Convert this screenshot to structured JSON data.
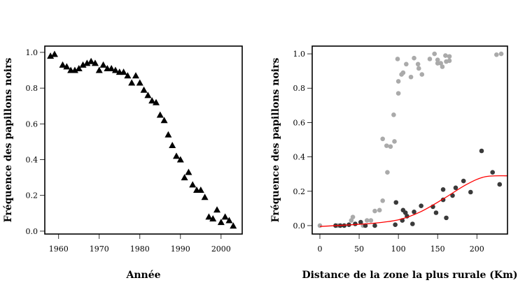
{
  "chart_data": [
    {
      "type": "scatter",
      "xlabel": "Année",
      "ylabel": "Fréquence des papillons noirs",
      "xlim": [
        1956.6,
        2005.2
      ],
      "ylim": [
        -0.016,
        1.035
      ],
      "xticks": [
        1960,
        1970,
        1980,
        1990,
        2000
      ],
      "yticks": [
        "0.0",
        "0.2",
        "0.4",
        "0.6",
        "0.8",
        "1.0"
      ],
      "marker": "triangle",
      "marker_color": "#000000",
      "grid": false,
      "points": [
        [
          1958,
          0.98
        ],
        [
          1959,
          0.99
        ],
        [
          1961,
          0.93
        ],
        [
          1962,
          0.92
        ],
        [
          1963,
          0.9
        ],
        [
          1964,
          0.9
        ],
        [
          1965,
          0.91
        ],
        [
          1966,
          0.93
        ],
        [
          1967,
          0.94
        ],
        [
          1968,
          0.95
        ],
        [
          1969,
          0.94
        ],
        [
          1970,
          0.9
        ],
        [
          1971,
          0.93
        ],
        [
          1972,
          0.91
        ],
        [
          1973,
          0.91
        ],
        [
          1974,
          0.9
        ],
        [
          1975,
          0.89
        ],
        [
          1976,
          0.89
        ],
        [
          1977,
          0.87
        ],
        [
          1978,
          0.83
        ],
        [
          1979,
          0.87
        ],
        [
          1980,
          0.83
        ],
        [
          1981,
          0.79
        ],
        [
          1982,
          0.76
        ],
        [
          1983,
          0.73
        ],
        [
          1984,
          0.72
        ],
        [
          1985,
          0.65
        ],
        [
          1986,
          0.62
        ],
        [
          1987,
          0.54
        ],
        [
          1988,
          0.48
        ],
        [
          1989,
          0.42
        ],
        [
          1990,
          0.4
        ],
        [
          1991,
          0.3
        ],
        [
          1992,
          0.33
        ],
        [
          1993,
          0.26
        ],
        [
          1994,
          0.23
        ],
        [
          1995,
          0.23
        ],
        [
          1996,
          0.19
        ],
        [
          1997,
          0.08
        ],
        [
          1998,
          0.07
        ],
        [
          1999,
          0.12
        ],
        [
          2000,
          0.05
        ],
        [
          2001,
          0.08
        ],
        [
          2002,
          0.06
        ],
        [
          2003,
          0.03
        ]
      ]
    },
    {
      "type": "scatter",
      "xlabel": "Distance de la zone la plus rurale (Km)",
      "ylabel": "Fréquence des papillons noirs",
      "xlim": [
        -9.8,
        239
      ],
      "ylim": [
        -0.049,
        1.045
      ],
      "xticks": [
        0,
        50,
        100,
        150,
        200
      ],
      "yticks": [
        "0.0",
        "0.2",
        "0.4",
        "0.6",
        "0.8",
        "1.0"
      ],
      "grid": false,
      "series": [
        {
          "color": "#aaaaaa",
          "points": [
            [
              0,
              0.0
            ],
            [
              23,
              0.0
            ],
            [
              40,
              0.03
            ],
            [
              42,
              0.05
            ],
            [
              55,
              0.0
            ],
            [
              60,
              0.03
            ],
            [
              65,
              0.03
            ],
            [
              70,
              0.085
            ],
            [
              76,
              0.09
            ],
            [
              80,
              0.145
            ],
            [
              80,
              0.505
            ],
            [
              85,
              0.465
            ],
            [
              90,
              0.46
            ],
            [
              86,
              0.31
            ],
            [
              95,
              0.49
            ],
            [
              94,
              0.645
            ],
            [
              100,
              0.77
            ],
            [
              100,
              0.84
            ],
            [
              99,
              0.97
            ],
            [
              104,
              0.88
            ],
            [
              106,
              0.89
            ],
            [
              110,
              0.94
            ],
            [
              116,
              0.865
            ],
            [
              120,
              0.975
            ],
            [
              125,
              0.94
            ],
            [
              126,
              0.915
            ],
            [
              130,
              0.88
            ],
            [
              140,
              0.97
            ],
            [
              146,
              1.0
            ],
            [
              150,
              0.965
            ],
            [
              150,
              0.945
            ],
            [
              154,
              0.945
            ],
            [
              156,
              0.925
            ],
            [
              160,
              0.99
            ],
            [
              161,
              0.955
            ],
            [
              165,
              0.985
            ],
            [
              165,
              0.96
            ],
            [
              225,
              0.995
            ],
            [
              231,
              1.0
            ]
          ]
        },
        {
          "color": "#3a3a3a",
          "points": [
            [
              20,
              0.0
            ],
            [
              26,
              0.0
            ],
            [
              31,
              0.0
            ],
            [
              37,
              0.005
            ],
            [
              45,
              0.01
            ],
            [
              52,
              0.02
            ],
            [
              58,
              0.0
            ],
            [
              70,
              0.0
            ],
            [
              96,
              0.005
            ],
            [
              97,
              0.135
            ],
            [
              105,
              0.03
            ],
            [
              106,
              0.09
            ],
            [
              109,
              0.075
            ],
            [
              111,
              0.055
            ],
            [
              118,
              0.01
            ],
            [
              120,
              0.08
            ],
            [
              129,
              0.115
            ],
            [
              144,
              0.11
            ],
            [
              148,
              0.075
            ],
            [
              157,
              0.15
            ],
            [
              157,
              0.21
            ],
            [
              161,
              0.045
            ],
            [
              169,
              0.175
            ],
            [
              173,
              0.22
            ],
            [
              183,
              0.26
            ],
            [
              192,
              0.195
            ],
            [
              206,
              0.435
            ],
            [
              220,
              0.31
            ],
            [
              229,
              0.24
            ]
          ]
        }
      ],
      "fit_curve": {
        "color": "#ff0000",
        "points": [
          [
            0,
            -0.005
          ],
          [
            40,
            0.005
          ],
          [
            71,
            0.015
          ],
          [
            101,
            0.035
          ],
          [
            128,
            0.08
          ],
          [
            157,
            0.155
          ],
          [
            187,
            0.24
          ],
          [
            211,
            0.285
          ],
          [
            239,
            0.29
          ]
        ]
      }
    }
  ]
}
